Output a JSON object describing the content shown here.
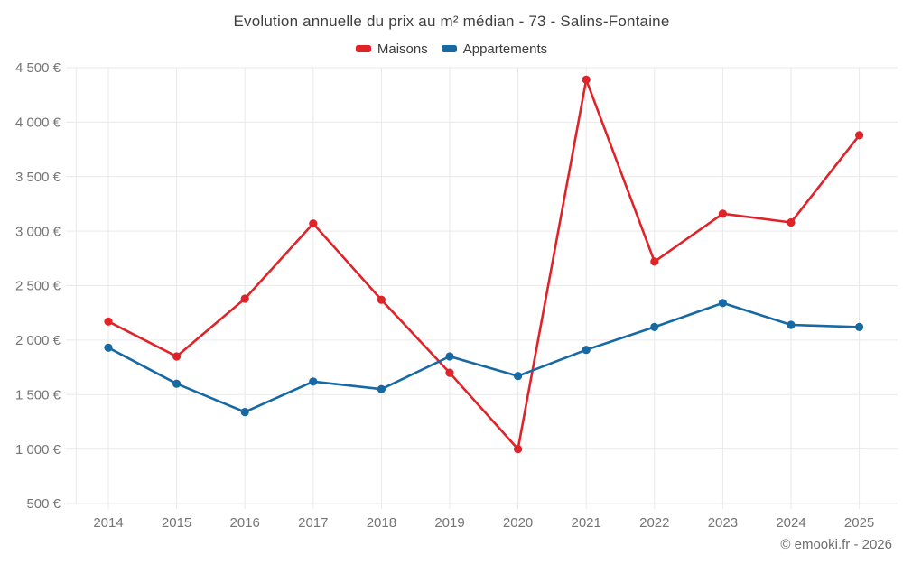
{
  "title": "Evolution annuelle du prix au m² médian - 73 - Salins-Fontaine",
  "copyright": "© emooki.fr - 2026",
  "chart_data": {
    "type": "line",
    "title": "Evolution annuelle du prix au m² médian - 73 - Salins-Fontaine",
    "x": [
      "2014",
      "2015",
      "2016",
      "2017",
      "2018",
      "2019",
      "2020",
      "2021",
      "2022",
      "2023",
      "2024",
      "2025"
    ],
    "series": [
      {
        "name": "Maisons",
        "color": "#e02329",
        "values": [
          2170,
          1850,
          2380,
          3070,
          2370,
          1700,
          1000,
          4390,
          2720,
          3160,
          3080,
          3880
        ]
      },
      {
        "name": "Appartements",
        "color": "#1769a4",
        "values": [
          1930,
          1600,
          1340,
          1620,
          1550,
          1850,
          1670,
          1910,
          2120,
          2340,
          2140,
          2120
        ]
      }
    ],
    "xlabel": "",
    "ylabel": "",
    "ylim": [
      500,
      4500
    ],
    "y_ticks": {
      "values": [
        500,
        1000,
        1500,
        2000,
        2500,
        3000,
        3500,
        4000,
        4500
      ],
      "labels": [
        "500 €",
        "1 000 €",
        "1 500 €",
        "2 000 €",
        "2 500 €",
        "3 000 €",
        "3 500 €",
        "4 000 €",
        "4 500 €"
      ]
    },
    "grid": true,
    "grid_color": "#e9e9e9",
    "legend_position": "top",
    "marker": "circle"
  }
}
